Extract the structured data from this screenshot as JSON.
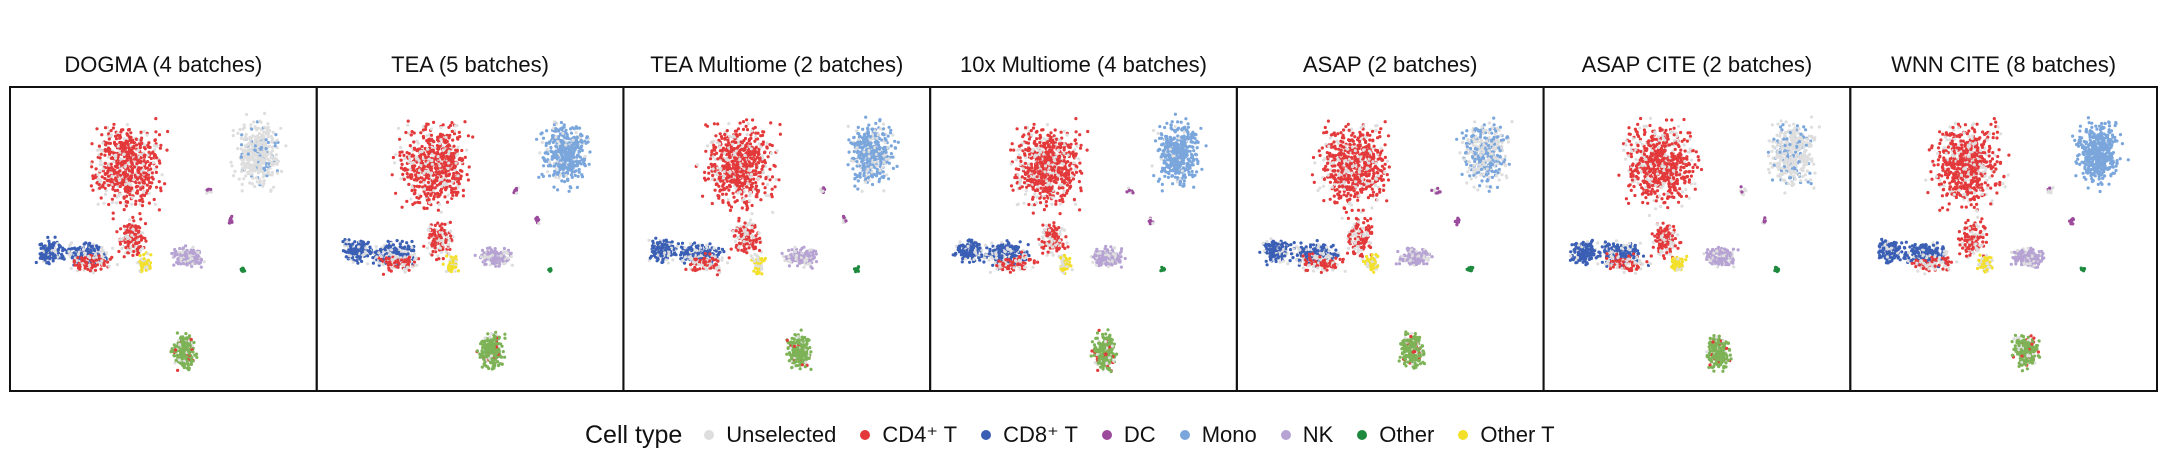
{
  "chart_data": {
    "type": "scatter",
    "title": "",
    "xlabel": "",
    "ylabel": "",
    "grid": false,
    "legend_position": "bottom",
    "legend_title": "Cell type",
    "categories": [
      {
        "name": "Unselected",
        "color": "#dedede"
      },
      {
        "name": "CD4⁺ T",
        "color": "#e3393b"
      },
      {
        "name": "CD8⁺ T",
        "color": "#3a5fb5"
      },
      {
        "name": "DC",
        "color": "#9b4a9c"
      },
      {
        "name": "Mono",
        "color": "#7aa6dc"
      },
      {
        "name": "NK",
        "color": "#b6a3d3"
      },
      {
        "name": "Other",
        "color": "#1e8a3e"
      },
      {
        "name": "Other T",
        "color": "#f2e02b"
      }
    ],
    "panels": [
      {
        "title": "DOGMA (4 batches)",
        "mono_visible": 0.15
      },
      {
        "title": "TEA (5 batches)",
        "mono_visible": 0.85
      },
      {
        "title": "TEA Multiome (2 batches)",
        "mono_visible": 0.75
      },
      {
        "title": "10x Multiome (4 batches)",
        "mono_visible": 0.95
      },
      {
        "title": "ASAP (2 batches)",
        "mono_visible": 0.5
      },
      {
        "title": "ASAP CITE (2 batches)",
        "mono_visible": 0.2
      },
      {
        "title": "WNN CITE (8 batches)",
        "mono_visible": 1.0
      }
    ]
  }
}
